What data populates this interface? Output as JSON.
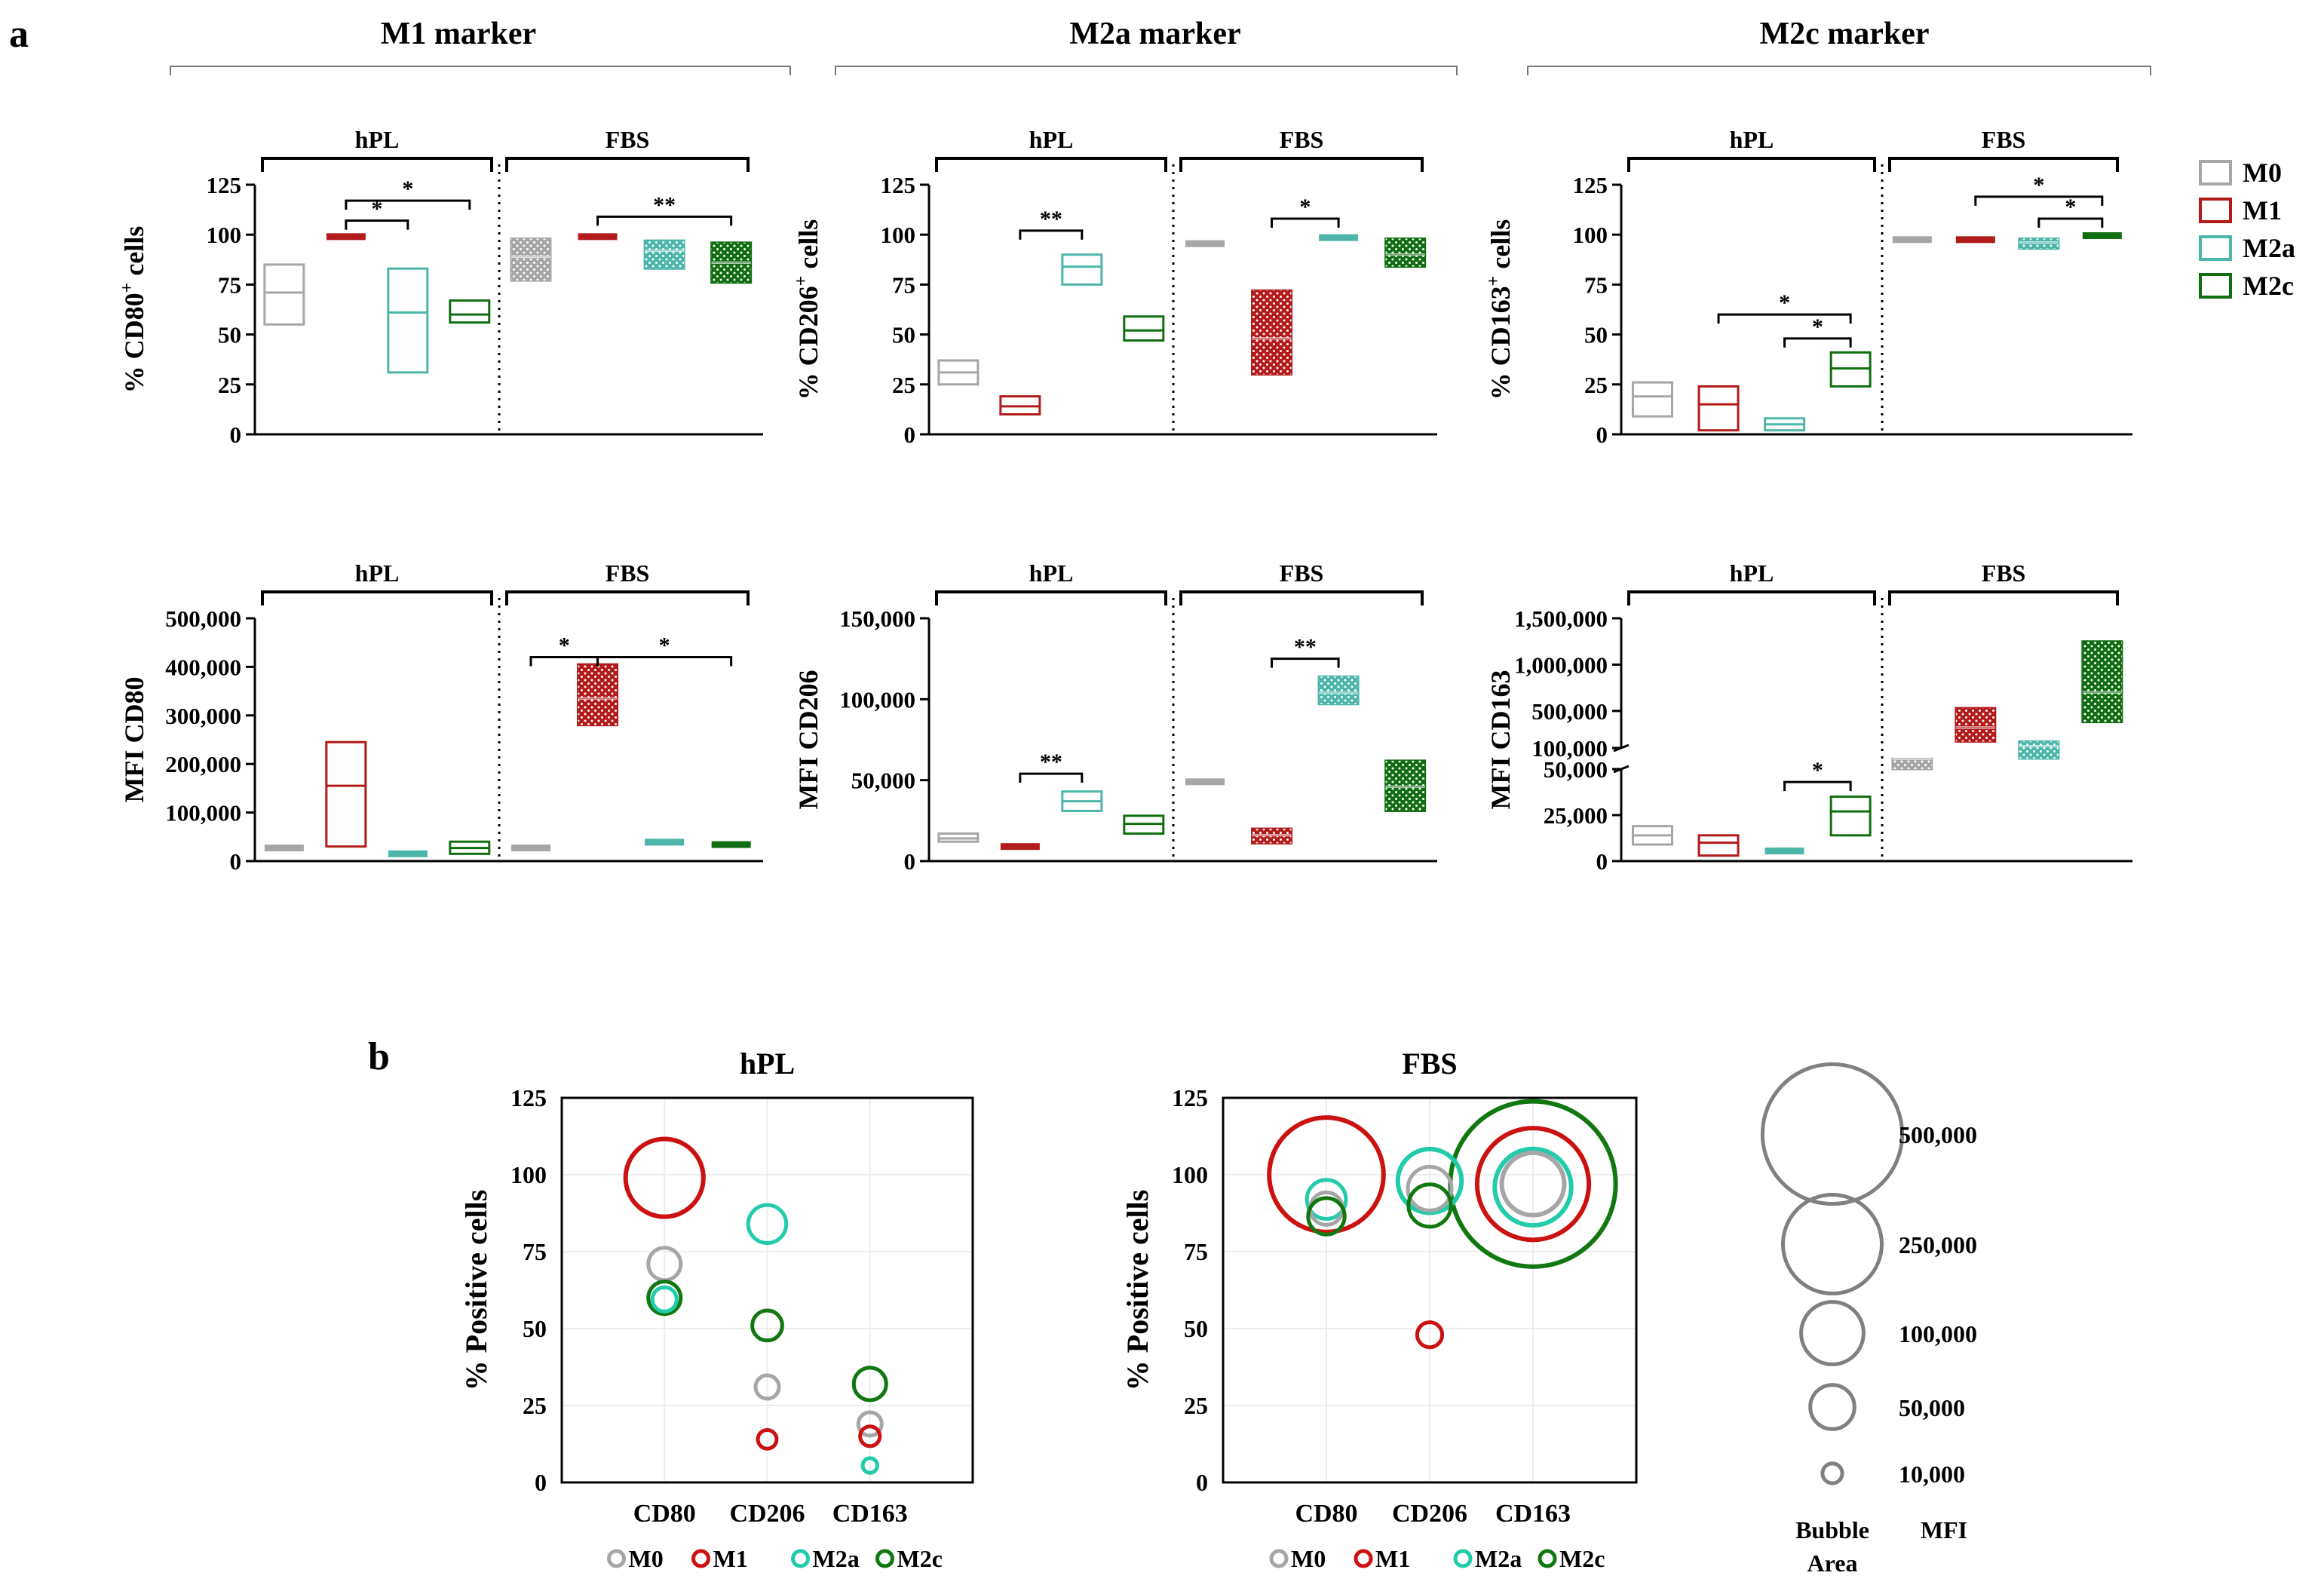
{
  "figure": {
    "panel_a_label": "a",
    "panel_b_label": "b",
    "markers": [
      "M1 marker",
      "M2a marker",
      "M2c marker"
    ],
    "groups": [
      "M0",
      "M1",
      "M2a",
      "M2c"
    ],
    "colors": {
      "M0": "#a6a6a6",
      "M1": "#b31b1b",
      "M2a": "#4db6a8",
      "M2c": "#116d11"
    },
    "bubble_colors": {
      "M0": "#a6a6a6",
      "M1": "#cc1111",
      "M2a": "#22ccaa",
      "M2c": "#117711"
    },
    "legend": [
      "M0",
      "M1",
      "M2a",
      "M2c"
    ]
  },
  "chart_data": [
    {
      "type": "box",
      "ylabel": "% CD80+ cells",
      "ylabel_main": "% CD80",
      "ylabel_sup": "+",
      "ylabel_tail": " cells",
      "conditions": [
        "hPL",
        "FBS"
      ],
      "ylim": [
        0,
        125
      ],
      "yticks": [
        "0",
        "25",
        "50",
        "75",
        "100",
        "125"
      ],
      "ytick_values": [
        0,
        25,
        50,
        75,
        100,
        125
      ],
      "boxes": [
        {
          "cond": "hPL",
          "group": "M0",
          "min": 55,
          "median": 71,
          "max": 85
        },
        {
          "cond": "hPL",
          "group": "M1",
          "min": 98,
          "median": 99,
          "max": 100
        },
        {
          "cond": "hPL",
          "group": "M2a",
          "min": 31,
          "median": 61,
          "max": 83
        },
        {
          "cond": "hPL",
          "group": "M2c",
          "min": 56,
          "median": 60,
          "max": 67
        },
        {
          "cond": "FBS",
          "group": "M0",
          "min": 77,
          "median": 89,
          "max": 98
        },
        {
          "cond": "FBS",
          "group": "M1",
          "min": 98,
          "median": 99,
          "max": 101
        },
        {
          "cond": "FBS",
          "group": "M2a",
          "min": 83,
          "median": 92,
          "max": 97
        },
        {
          "cond": "FBS",
          "group": "M2c",
          "min": 76,
          "median": 86,
          "max": 96
        }
      ],
      "sig": [
        {
          "cond": "hPL",
          "from": "M1",
          "to": "M2a",
          "y": 107,
          "label": "*"
        },
        {
          "cond": "hPL",
          "from": "M1",
          "to": "M2c",
          "y": 117,
          "label": "*"
        },
        {
          "cond": "FBS",
          "from": "M1",
          "to": "M2c",
          "y": 109,
          "label": "**"
        }
      ]
    },
    {
      "type": "box",
      "ylabel": "% CD206+ cells",
      "ylabel_main": "% CD206",
      "ylabel_sup": "+",
      "ylabel_tail": " cells",
      "conditions": [
        "hPL",
        "FBS"
      ],
      "ylim": [
        0,
        125
      ],
      "yticks": [
        "0",
        "25",
        "50",
        "75",
        "100",
        "125"
      ],
      "ytick_values": [
        0,
        25,
        50,
        75,
        100,
        125
      ],
      "boxes": [
        {
          "cond": "hPL",
          "group": "M0",
          "min": 25,
          "median": 31,
          "max": 37
        },
        {
          "cond": "hPL",
          "group": "M1",
          "min": 10,
          "median": 14,
          "max": 19
        },
        {
          "cond": "hPL",
          "group": "M2a",
          "min": 75,
          "median": 84,
          "max": 90
        },
        {
          "cond": "hPL",
          "group": "M2c",
          "min": 47,
          "median": 52,
          "max": 59
        },
        {
          "cond": "FBS",
          "group": "M0",
          "min": 94,
          "median": 95.5,
          "max": 97
        },
        {
          "cond": "FBS",
          "group": "M1",
          "min": 30,
          "median": 48,
          "max": 72
        },
        {
          "cond": "FBS",
          "group": "M2a",
          "min": 98,
          "median": 98.5,
          "max": 99
        },
        {
          "cond": "FBS",
          "group": "M2c",
          "min": 84,
          "median": 90,
          "max": 98
        }
      ],
      "sig": [
        {
          "cond": "hPL",
          "from": "M1",
          "to": "M2a",
          "y": 102,
          "label": "**"
        },
        {
          "cond": "FBS",
          "from": "M1",
          "to": "M2a",
          "y": 108,
          "label": "*"
        }
      ]
    },
    {
      "type": "box",
      "ylabel": "% CD163+ cells",
      "ylabel_main": "% CD163",
      "ylabel_sup": "+",
      "ylabel_tail": " cells",
      "conditions": [
        "hPL",
        "FBS"
      ],
      "ylim": [
        0,
        125
      ],
      "yticks": [
        "0",
        "25",
        "50",
        "75",
        "100",
        "125"
      ],
      "ytick_values": [
        0,
        25,
        50,
        75,
        100,
        125
      ],
      "boxes": [
        {
          "cond": "hPL",
          "group": "M0",
          "min": 9,
          "median": 19,
          "max": 26
        },
        {
          "cond": "hPL",
          "group": "M1",
          "min": 2,
          "median": 15,
          "max": 24
        },
        {
          "cond": "hPL",
          "group": "M2a",
          "min": 2,
          "median": 5,
          "max": 8
        },
        {
          "cond": "hPL",
          "group": "M2c",
          "min": 24,
          "median": 33,
          "max": 41
        },
        {
          "cond": "FBS",
          "group": "M0",
          "min": 96,
          "median": 97.5,
          "max": 99
        },
        {
          "cond": "FBS",
          "group": "M1",
          "min": 96,
          "median": 97.5,
          "max": 99
        },
        {
          "cond": "FBS",
          "group": "M2a",
          "min": 93,
          "median": 96,
          "max": 98
        },
        {
          "cond": "FBS",
          "group": "M2c",
          "min": 98.5,
          "median": 99.5,
          "max": 100.5
        }
      ],
      "sig": [
        {
          "cond": "hPL",
          "from": "M1",
          "to": "M2c",
          "y": 60,
          "label": "*"
        },
        {
          "cond": "hPL",
          "from": "M2a",
          "to": "M2c",
          "y": 48,
          "label": "*"
        },
        {
          "cond": "FBS",
          "from": "M1",
          "to": "M2c",
          "y": 119,
          "label": "*"
        },
        {
          "cond": "FBS",
          "from": "M2a",
          "to": "M2c",
          "y": 108,
          "label": "*"
        }
      ]
    },
    {
      "type": "box",
      "ylabel": "MFI CD80",
      "conditions": [
        "hPL",
        "FBS"
      ],
      "ylim": [
        0,
        500000
      ],
      "yticks": [
        "0",
        "100,000",
        "200,000",
        "300,000",
        "400,000",
        "500,000"
      ],
      "ytick_values": [
        0,
        100000,
        200000,
        300000,
        400000,
        500000
      ],
      "boxes": [
        {
          "cond": "hPL",
          "group": "M0",
          "min": 23000,
          "median": 27000,
          "max": 31000
        },
        {
          "cond": "hPL",
          "group": "M1",
          "min": 30000,
          "median": 155000,
          "max": 245000
        },
        {
          "cond": "hPL",
          "group": "M2a",
          "min": 12000,
          "median": 15000,
          "max": 18000
        },
        {
          "cond": "hPL",
          "group": "M2c",
          "min": 15000,
          "median": 27000,
          "max": 40000
        },
        {
          "cond": "FBS",
          "group": "M0",
          "min": 23000,
          "median": 27000,
          "max": 31000
        },
        {
          "cond": "FBS",
          "group": "M1",
          "min": 280000,
          "median": 335000,
          "max": 405000
        },
        {
          "cond": "FBS",
          "group": "M2a",
          "min": 36000,
          "median": 39000,
          "max": 42000
        },
        {
          "cond": "FBS",
          "group": "M2c",
          "min": 32000,
          "median": 34000,
          "max": 36000
        }
      ],
      "sig": [
        {
          "cond": "FBS",
          "from": "M0",
          "to": "M1",
          "y": 420000,
          "label": "*"
        },
        {
          "cond": "FBS",
          "from": "M1",
          "to": "M2c",
          "y": 420000,
          "label": "*"
        }
      ]
    },
    {
      "type": "box",
      "ylabel": "MFI CD206",
      "conditions": [
        "hPL",
        "FBS"
      ],
      "ylim": [
        0,
        150000
      ],
      "yticks": [
        "0",
        "50,000",
        "100,000",
        "150,000"
      ],
      "ytick_values": [
        0,
        50000,
        100000,
        150000
      ],
      "boxes": [
        {
          "cond": "hPL",
          "group": "M0",
          "min": 12000,
          "median": 14000,
          "max": 17000
        },
        {
          "cond": "hPL",
          "group": "M1",
          "min": 8000,
          "median": 9000,
          "max": 10000
        },
        {
          "cond": "hPL",
          "group": "M2a",
          "min": 31000,
          "median": 37000,
          "max": 43000
        },
        {
          "cond": "hPL",
          "group": "M2c",
          "min": 17000,
          "median": 23000,
          "max": 28000
        },
        {
          "cond": "FBS",
          "group": "M0",
          "min": 48000,
          "median": 49000,
          "max": 50000
        },
        {
          "cond": "FBS",
          "group": "M1",
          "min": 11000,
          "median": 16000,
          "max": 20000
        },
        {
          "cond": "FBS",
          "group": "M2a",
          "min": 97000,
          "median": 104000,
          "max": 114000
        },
        {
          "cond": "FBS",
          "group": "M2c",
          "min": 31000,
          "median": 46000,
          "max": 62000
        }
      ],
      "sig": [
        {
          "cond": "hPL",
          "from": "M1",
          "to": "M2a",
          "y": 54000,
          "label": "**"
        },
        {
          "cond": "FBS",
          "from": "M1",
          "to": "M2a",
          "y": 125000,
          "label": "**"
        }
      ]
    },
    {
      "type": "box",
      "ylabel": "MFI CD163",
      "conditions": [
        "hPL",
        "FBS"
      ],
      "broken_axis": true,
      "lower_ylim": [
        0,
        50000
      ],
      "upper_ylim": [
        100000,
        1500000
      ],
      "lower_yticks": [
        "0",
        "25,000",
        "50,000"
      ],
      "lower_ytick_values": [
        0,
        25000,
        50000
      ],
      "upper_yticks": [
        "100,000",
        "500,000",
        "1,000,000",
        "1,500,000"
      ],
      "upper_ytick_values": [
        100000,
        500000,
        1000000,
        1500000
      ],
      "boxes": [
        {
          "cond": "hPL",
          "group": "M0",
          "min": 9000,
          "median": 14000,
          "max": 19000
        },
        {
          "cond": "hPL",
          "group": "M1",
          "min": 3000,
          "median": 10000,
          "max": 14000
        },
        {
          "cond": "hPL",
          "group": "M2a",
          "min": 4000,
          "median": 5500,
          "max": 7000
        },
        {
          "cond": "hPL",
          "group": "M2c",
          "min": 14000,
          "median": 27000,
          "max": 35000
        },
        {
          "cond": "FBS",
          "group": "M0",
          "min": 50000,
          "median": 55000,
          "max": 60000
        },
        {
          "cond": "FBS",
          "group": "M1",
          "min": 170000,
          "median": 320000,
          "max": 530000
        },
        {
          "cond": "FBS",
          "group": "M2a",
          "min": 80000,
          "median": 120000,
          "max": 170000
        },
        {
          "cond": "FBS",
          "group": "M2c",
          "min": 380000,
          "median": 700000,
          "max": 1250000
        }
      ],
      "sig": [
        {
          "cond": "hPL",
          "from": "M2a",
          "to": "M2c",
          "y": 43000,
          "label": "*"
        }
      ]
    },
    {
      "type": "bubble",
      "title": "hPL",
      "ylabel": "% Positive cells",
      "categories": [
        "CD80",
        "CD206",
        "CD163"
      ],
      "ylim": [
        0,
        125
      ],
      "yticks": [
        "0",
        "25",
        "50",
        "75",
        "100",
        "125"
      ],
      "ytick_values": [
        0,
        25,
        50,
        75,
        100,
        125
      ],
      "points": [
        {
          "cat": "CD80",
          "group": "M1",
          "y": 99,
          "mfi": 155000
        },
        {
          "cat": "CD80",
          "group": "M0",
          "y": 71,
          "mfi": 27000
        },
        {
          "cat": "CD80",
          "group": "M2c",
          "y": 60,
          "mfi": 27000
        },
        {
          "cat": "CD80",
          "group": "M2a",
          "y": 59.5,
          "mfi": 15000
        },
        {
          "cat": "CD206",
          "group": "M2a",
          "y": 84,
          "mfi": 37000
        },
        {
          "cat": "CD206",
          "group": "M2c",
          "y": 51,
          "mfi": 23000
        },
        {
          "cat": "CD206",
          "group": "M0",
          "y": 31,
          "mfi": 14000
        },
        {
          "cat": "CD206",
          "group": "M1",
          "y": 14,
          "mfi": 9000
        },
        {
          "cat": "CD163",
          "group": "M2c",
          "y": 32,
          "mfi": 27000
        },
        {
          "cat": "CD163",
          "group": "M0",
          "y": 19,
          "mfi": 14000
        },
        {
          "cat": "CD163",
          "group": "M1",
          "y": 15,
          "mfi": 10000
        },
        {
          "cat": "CD163",
          "group": "M2a",
          "y": 5.5,
          "mfi": 5500
        }
      ]
    },
    {
      "type": "bubble",
      "title": "FBS",
      "ylabel": "% Positive cells",
      "categories": [
        "CD80",
        "CD206",
        "CD163"
      ],
      "ylim": [
        0,
        125
      ],
      "yticks": [
        "0",
        "25",
        "50",
        "75",
        "100",
        "125"
      ],
      "ytick_values": [
        0,
        25,
        50,
        75,
        100,
        125
      ],
      "points": [
        {
          "cat": "CD163",
          "group": "M2c",
          "y": 97,
          "mfi": 700000
        },
        {
          "cat": "CD163",
          "group": "M1",
          "y": 97,
          "mfi": 320000
        },
        {
          "cat": "CD163",
          "group": "M2a",
          "y": 96,
          "mfi": 150000
        },
        {
          "cat": "CD163",
          "group": "M0",
          "y": 97,
          "mfi": 100000
        },
        {
          "cat": "CD80",
          "group": "M1",
          "y": 100,
          "mfi": 335000
        },
        {
          "cat": "CD80",
          "group": "M2a",
          "y": 92,
          "mfi": 39000
        },
        {
          "cat": "CD80",
          "group": "M0",
          "y": 89,
          "mfi": 27000
        },
        {
          "cat": "CD80",
          "group": "M2c",
          "y": 86.5,
          "mfi": 34000
        },
        {
          "cat": "CD206",
          "group": "M2a",
          "y": 98,
          "mfi": 104000
        },
        {
          "cat": "CD206",
          "group": "M0",
          "y": 95.5,
          "mfi": 49000
        },
        {
          "cat": "CD206",
          "group": "M2c",
          "y": 90,
          "mfi": 46000
        },
        {
          "cat": "CD206",
          "group": "M1",
          "y": 48,
          "mfi": 16000
        }
      ]
    }
  ],
  "bubble_legend": {
    "values": [
      500000,
      250000,
      100000,
      50000,
      10000
    ],
    "labels": [
      "500,000",
      "250,000",
      "100,000",
      "50,000",
      "10,000"
    ],
    "footer_left_1": "Bubble",
    "footer_left_2": "Area",
    "footer_right": "MFI"
  }
}
